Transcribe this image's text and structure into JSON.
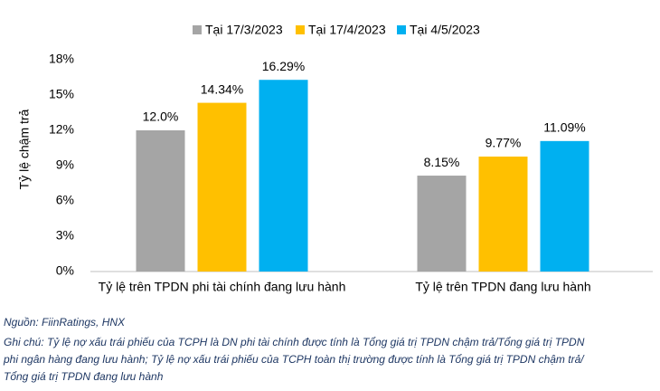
{
  "chart_data": {
    "type": "bar",
    "y_label": "Tỷ lệ chậm trả",
    "categories": [
      "Tỷ lệ trên TPDN phi tài chính đang lưu hành",
      "Tỷ lệ trên TPDN đang lưu hành"
    ],
    "series": [
      {
        "name": "Tại 17/3/2023",
        "color": "#a5a5a5",
        "values": [
          12.0,
          8.15
        ],
        "value_labels": [
          "12.0%",
          "8.15%"
        ]
      },
      {
        "name": "Tại 17/4/2023",
        "color": "#ffc000",
        "values": [
          14.34,
          9.77
        ],
        "value_labels": [
          "14.34%",
          "9.77%"
        ]
      },
      {
        "name": "Tại 4/5/2023",
        "color": "#00b0f0",
        "values": [
          16.29,
          11.09
        ],
        "value_labels": [
          "16.29%",
          "11.09%"
        ]
      }
    ],
    "ylim": [
      0,
      18
    ],
    "yticks": [
      {
        "value": 0,
        "label": "0%"
      },
      {
        "value": 3,
        "label": "3%"
      },
      {
        "value": 6,
        "label": "6%"
      },
      {
        "value": 9,
        "label": "9%"
      },
      {
        "value": 12,
        "label": "12%"
      },
      {
        "value": 15,
        "label": "15%"
      },
      {
        "value": 18,
        "label": "18%"
      }
    ],
    "legend_position": "top",
    "source": "Nguồn: FiinRatings, HNX",
    "note": [
      "Ghi chú: Tỷ lệ nợ xấu trái phiếu của TCPH là DN phi tài chính được tính là Tổng giá trị TPDN chậm trả/Tổng giá trị TPDN",
      "phi ngân hàng đang lưu hành; Tỷ lệ nợ xấu trái phiếu của TCPH toàn thị trường được tính là Tổng giá trị TPDN chậm trả/",
      "Tổng giá trị TPDN đang lưu hành"
    ]
  }
}
